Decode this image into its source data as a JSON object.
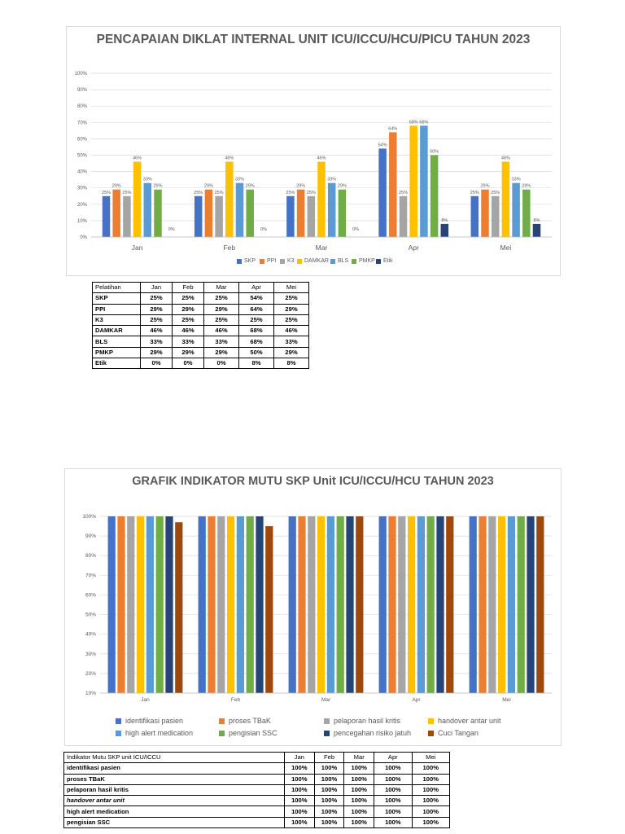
{
  "chart_data": [
    {
      "type": "bar",
      "title": "PENCAPAIAN DIKLAT INTERNAL UNIT ICU/ICCU/HCU/PICU TAHUN 2023",
      "categories": [
        "Jan",
        "Feb",
        "Mar",
        "Apr",
        "Mei"
      ],
      "ylim": [
        0,
        100
      ],
      "yticks": [
        "0%",
        "10%",
        "20%",
        "30%",
        "40%",
        "50%",
        "60%",
        "70%",
        "80%",
        "90%",
        "100%"
      ],
      "grid": true,
      "legend_position": "bottom",
      "series": [
        {
          "name": "SKP",
          "color": "#4472c4",
          "values": [
            25,
            25,
            25,
            54,
            25
          ]
        },
        {
          "name": "PPI",
          "color": "#ed7d31",
          "values": [
            29,
            29,
            29,
            64,
            29
          ]
        },
        {
          "name": "K3",
          "color": "#a5a5a5",
          "values": [
            25,
            25,
            25,
            25,
            25
          ]
        },
        {
          "name": "DAMKAR",
          "color": "#ffc000",
          "values": [
            46,
            46,
            46,
            68,
            46
          ]
        },
        {
          "name": "BLS",
          "color": "#5b9bd5",
          "values": [
            33,
            33,
            33,
            68,
            33
          ]
        },
        {
          "name": "PMKP",
          "color": "#70ad47",
          "values": [
            29,
            29,
            29,
            50,
            29
          ]
        },
        {
          "name": "Etik",
          "color": "#264478",
          "values": [
            0,
            0,
            0,
            8,
            8
          ]
        }
      ]
    },
    {
      "type": "bar",
      "title": "GRAFIK INDIKATOR MUTU SKP Unit ICU/ICCU/HCU TAHUN 2023",
      "categories": [
        "Jan",
        "Feb",
        "Mar",
        "Apr",
        "Mei"
      ],
      "ylim": [
        10,
        100
      ],
      "yticks": [
        "10%",
        "20%",
        "30%",
        "40%",
        "50%",
        "60%",
        "70%",
        "80%",
        "90%",
        "100%"
      ],
      "grid": true,
      "legend_position": "bottom",
      "series": [
        {
          "name": "identifikasi pasien",
          "color": "#4472c4",
          "values": [
            100,
            100,
            100,
            100,
            100
          ]
        },
        {
          "name": "proses TBaK",
          "color": "#ed7d31",
          "values": [
            100,
            100,
            100,
            100,
            100
          ]
        },
        {
          "name": "pelaporan hasil kritis",
          "color": "#a5a5a5",
          "values": [
            100,
            100,
            100,
            100,
            100
          ]
        },
        {
          "name": "handover antar unit",
          "color": "#ffc000",
          "values": [
            100,
            100,
            100,
            100,
            100
          ]
        },
        {
          "name": "high alert medication",
          "color": "#5b9bd5",
          "values": [
            100,
            100,
            100,
            100,
            100
          ]
        },
        {
          "name": "pengisian SSC",
          "color": "#70ad47",
          "values": [
            100,
            100,
            100,
            100,
            100
          ]
        },
        {
          "name": "pencegahan risiko jatuh",
          "color": "#264478",
          "values": [
            100,
            100,
            100,
            100,
            100
          ]
        },
        {
          "name": "Cuci Tangan",
          "color": "#9e480e",
          "values": [
            97,
            95,
            100,
            100,
            100
          ]
        }
      ]
    }
  ],
  "table1": {
    "header": [
      "Pelatihan",
      "Jan",
      "Feb",
      "Mar",
      "Apr",
      "Mei"
    ],
    "rows": [
      [
        "SKP",
        "25%",
        "25%",
        "25%",
        "54%",
        "25%"
      ],
      [
        "PPI",
        "29%",
        "29%",
        "29%",
        "64%",
        "29%"
      ],
      [
        "K3",
        "25%",
        "25%",
        "25%",
        "25%",
        "25%"
      ],
      [
        "DAMKAR",
        "46%",
        "46%",
        "46%",
        "68%",
        "46%"
      ],
      [
        "BLS",
        "33%",
        "33%",
        "33%",
        "68%",
        "33%"
      ],
      [
        "PMKP",
        "29%",
        "29%",
        "29%",
        "50%",
        "29%"
      ],
      [
        "Etik",
        "0%",
        "0%",
        "0%",
        "8%",
        "8%"
      ]
    ]
  },
  "table2": {
    "header": [
      "Indikator Mutu SKP unit ICU/ICCU",
      "Jan",
      "Feb",
      "Mar",
      "Apr",
      "Mei"
    ],
    "rows": [
      [
        "identifikasi pasien",
        "100%",
        "100%",
        "100%",
        "100%",
        "100%"
      ],
      [
        "proses TBaK",
        "100%",
        "100%",
        "100%",
        "100%",
        "100%"
      ],
      [
        "pelaporan hasil kritis",
        "100%",
        "100%",
        "100%",
        "100%",
        "100%"
      ],
      [
        "handover antar unit",
        "100%",
        "100%",
        "100%",
        "100%",
        "100%"
      ],
      [
        "high alert medication",
        "100%",
        "100%",
        "100%",
        "100%",
        "100%"
      ],
      [
        "pengisian SSC",
        "100%",
        "100%",
        "100%",
        "100%",
        "100%"
      ]
    ]
  }
}
